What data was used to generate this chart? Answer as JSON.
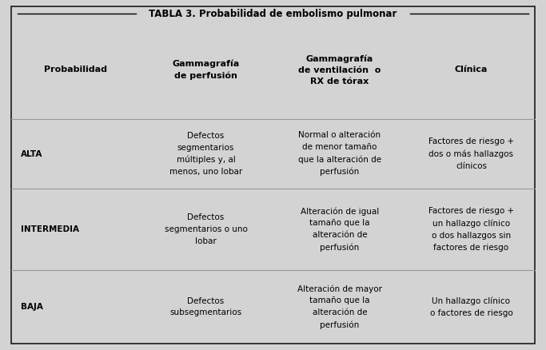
{
  "title": "TABLA 3. Probabilidad de embolismo pulmonar",
  "bg_color": "#d3d3d3",
  "line_color": "#999999",
  "outer_border": "#1a1a1a",
  "columns": [
    "Probabilidad",
    "Gammagrafía\nde perfusión",
    "Gammagrafía\nde ventilación  o\nRX de tórax",
    "Clínica"
  ],
  "rows": [
    {
      "prob": "ALTA",
      "perf": "Defectos\nsegmentarios\nmúltiples y, al\nmenos, uno lobar",
      "vent": "Normal o alteración\nde menor tamaño\nque la alteración de\nperfusión",
      "clin": "Factores de riesgo +\ndos o más hallazgos\nclínicos"
    },
    {
      "prob": "INTERMEDIA",
      "perf": "Defectos\nsegmentarios o uno\nlobar",
      "vent": "Alteración de igual\ntamaño que la\nalteración de\nperfusión",
      "clin": "Factores de riesgo +\nun hallazgo clínico\no dos hallazgos sin\nfactores de riesgo"
    },
    {
      "prob": "BAJA",
      "perf": "Defectos\nsubsegmentarios",
      "vent": "Alteración de mayor\ntamaño que la\nalteración de\nperfusión",
      "clin": "Un hallazgo clínico\no factores de riesgo"
    }
  ],
  "title_fontsize": 8.5,
  "header_fontsize": 8.0,
  "cell_fontsize": 7.5,
  "fig_width": 6.83,
  "fig_height": 4.38,
  "dpi": 100
}
